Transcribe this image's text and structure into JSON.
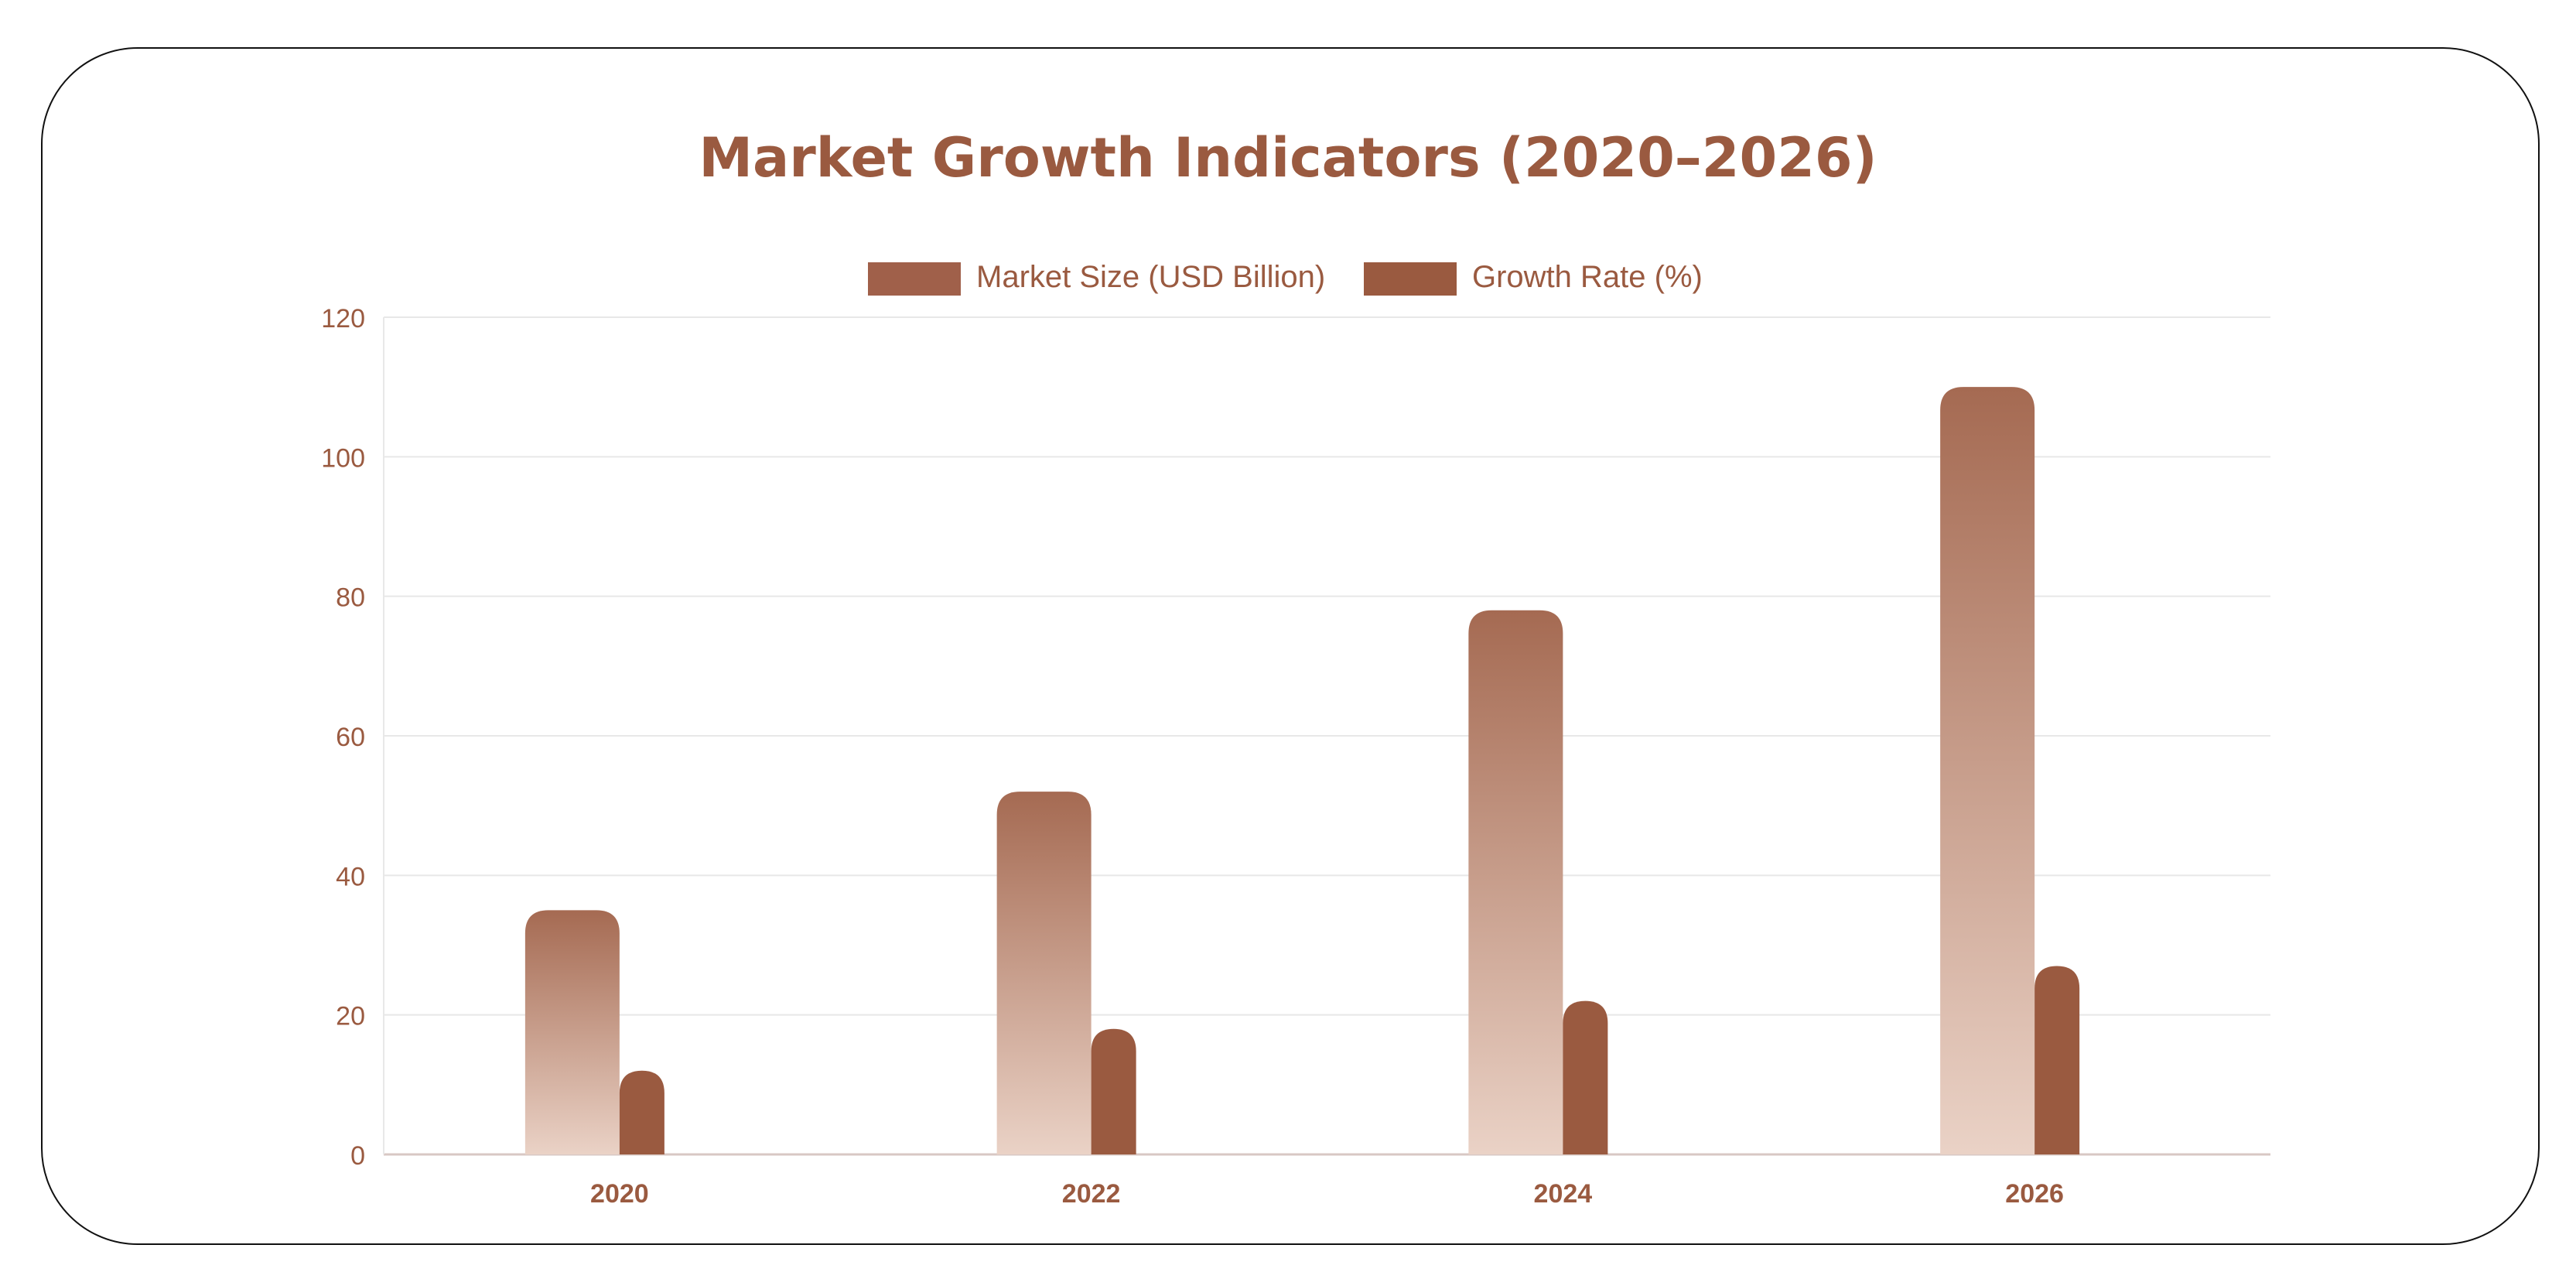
{
  "chart_data": {
    "type": "bar",
    "title": "Market Growth Indicators (2020–2026)",
    "categories": [
      "2020",
      "2022",
      "2024",
      "2026"
    ],
    "series": [
      {
        "name": "Market Size (USD Billion)",
        "values": [
          35,
          52,
          78,
          110
        ]
      },
      {
        "name": "Growth Rate (%)",
        "values": [
          12,
          18,
          22,
          27
        ]
      }
    ],
    "ylim": [
      0,
      120
    ],
    "yticks": [
      "0",
      "20",
      "40",
      "60",
      "80",
      "100",
      "120"
    ],
    "xlabel": "",
    "ylabel": "",
    "legend_position": "top-center",
    "grid": true,
    "colors": {
      "title": "#9a5a40",
      "axis_text": "#9a5a40",
      "series_market_top": "#a56a52",
      "series_market_bottom": "#ead2c6",
      "series_growth": "#9a5a40",
      "legend_market": "#a0604a",
      "legend_growth": "#9a5a40",
      "grid": "#e8e8e8",
      "axis": "#d8c8c4"
    }
  }
}
